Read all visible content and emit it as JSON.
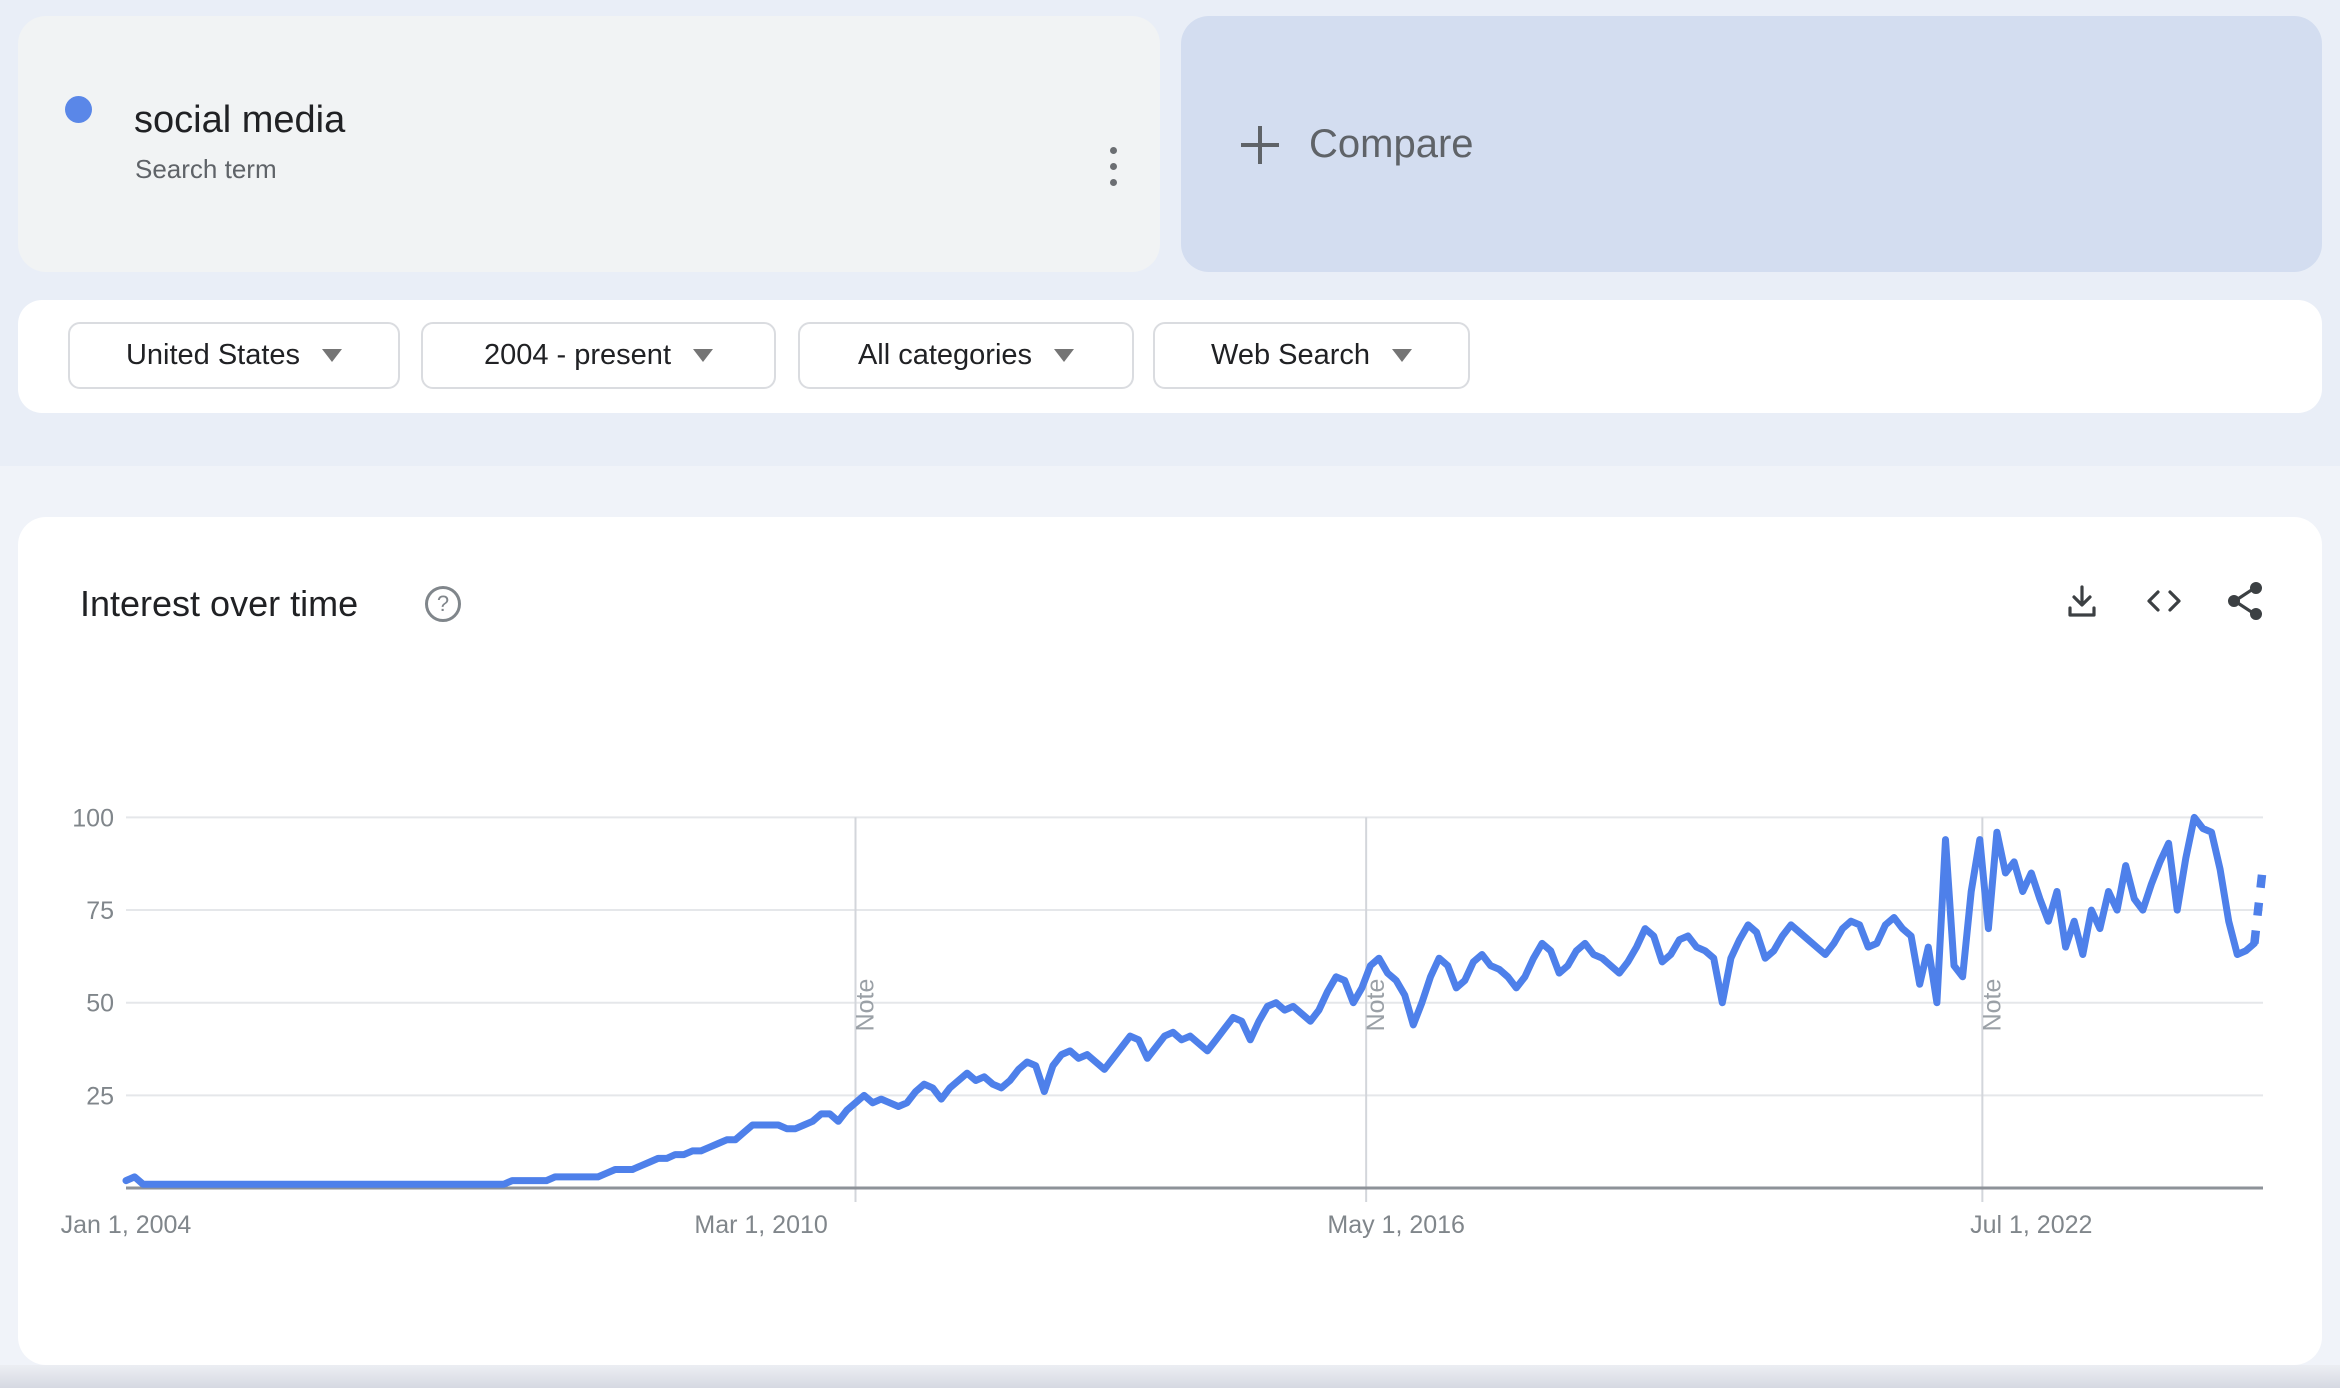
{
  "header": {
    "term_card": {
      "term": "social media",
      "type_label": "Search term",
      "dot_color": "#5a87e8"
    },
    "compare_card": {
      "label": "Compare"
    }
  },
  "filters": [
    {
      "label": "United States"
    },
    {
      "label": "2004 - present"
    },
    {
      "label": "All categories"
    },
    {
      "label": "Web Search"
    }
  ],
  "chart_card": {
    "title": "Interest over time",
    "help_glyph": "?"
  },
  "chart_data": {
    "type": "line",
    "title": "Interest over time",
    "series_name": "social media",
    "line_color": "#4e80ea",
    "ylim": [
      0,
      100
    ],
    "y_ticks": [
      25,
      50,
      75,
      100
    ],
    "grid": true,
    "legend": "none",
    "x_description": "Monthly values, Jan 2004 to present",
    "x_ticks": [
      {
        "index": 0,
        "label": "Jan 1, 2004"
      },
      {
        "index": 74,
        "label": "Mar 1, 2010"
      },
      {
        "index": 148,
        "label": "May 1, 2016"
      },
      {
        "index": 222,
        "label": "Jul 1, 2022"
      }
    ],
    "note_label": "Note",
    "notes": [
      85,
      144.5,
      216.3
    ],
    "partial_final_segment": true,
    "colors": {
      "grid": "#e5e7ea",
      "axis": "#8d9298",
      "axis_text": "#80868b",
      "note_line": "#d3d6db",
      "note_text": "#9aa0a6"
    },
    "values": [
      2,
      3,
      1,
      1,
      1,
      1,
      1,
      1,
      1,
      1,
      1,
      1,
      1,
      1,
      1,
      1,
      1,
      1,
      1,
      1,
      1,
      1,
      1,
      1,
      1,
      1,
      1,
      1,
      1,
      1,
      1,
      1,
      1,
      1,
      1,
      1,
      1,
      1,
      1,
      1,
      1,
      1,
      1,
      1,
      1,
      2,
      2,
      2,
      2,
      2,
      3,
      3,
      3,
      3,
      3,
      3,
      4,
      5,
      5,
      5,
      6,
      7,
      8,
      8,
      9,
      9,
      10,
      10,
      11,
      12,
      13,
      13,
      15,
      17,
      17,
      17,
      17,
      16,
      16,
      17,
      18,
      20,
      20,
      18,
      21,
      23,
      25,
      23,
      24,
      23,
      22,
      23,
      26,
      28,
      27,
      24,
      27,
      29,
      31,
      29,
      30,
      28,
      27,
      29,
      32,
      34,
      33,
      26,
      33,
      36,
      37,
      35,
      36,
      34,
      32,
      35,
      38,
      41,
      40,
      35,
      38,
      41,
      42,
      40,
      41,
      39,
      37,
      40,
      43,
      46,
      45,
      40,
      45,
      49,
      50,
      48,
      49,
      47,
      45,
      48,
      53,
      57,
      56,
      50,
      54,
      60,
      62,
      58,
      56,
      52,
      44,
      50,
      57,
      62,
      60,
      54,
      56,
      61,
      63,
      60,
      59,
      57,
      54,
      57,
      62,
      66,
      64,
      58,
      60,
      64,
      66,
      63,
      62,
      60,
      58,
      61,
      65,
      70,
      68,
      61,
      63,
      67,
      68,
      65,
      64,
      62,
      50,
      62,
      67,
      71,
      69,
      62,
      64,
      68,
      71,
      69,
      67,
      65,
      63,
      66,
      70,
      72,
      71,
      65,
      66,
      71,
      73,
      70,
      68,
      55,
      65,
      50,
      94,
      60,
      57,
      80,
      94,
      70,
      96,
      85,
      88,
      80,
      85,
      78,
      72,
      80,
      65,
      72,
      63,
      75,
      70,
      80,
      75,
      87,
      78,
      75,
      82,
      88,
      93,
      75,
      89,
      100,
      97,
      96,
      86,
      72,
      63,
      64,
      66,
      87
    ]
  }
}
